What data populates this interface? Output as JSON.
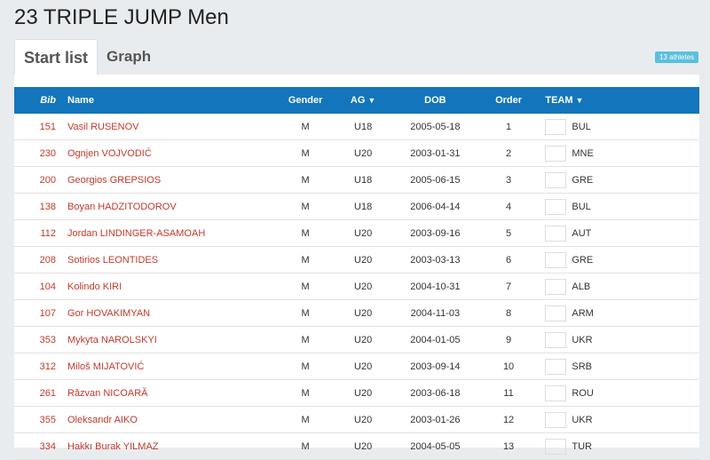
{
  "title": "23 TRIPLE JUMP Men",
  "tabs": [
    {
      "label": "Start list",
      "active": true
    },
    {
      "label": "Graph",
      "active": false
    }
  ],
  "badge": "13 athletes",
  "columns": {
    "bib": "Bib",
    "name": "Name",
    "gender": "Gender",
    "ag": "AG",
    "dob": "DOB",
    "order": "Order",
    "team": "TEAM"
  },
  "icons": {
    "filter": "filter-icon"
  },
  "colors": {
    "header": "#1375bb",
    "link": "#c0392b",
    "badge": "#5bc0de"
  },
  "rows": [
    {
      "bib": "151",
      "name": "Vasil RUSENOV",
      "gender": "M",
      "ag": "U18",
      "dob": "2005-05-18",
      "order": "1",
      "team": "BUL"
    },
    {
      "bib": "230",
      "name": "Ognjen VOJVODIĆ",
      "gender": "M",
      "ag": "U20",
      "dob": "2003-01-31",
      "order": "2",
      "team": "MNE"
    },
    {
      "bib": "200",
      "name": "Georgios GREPSIOS",
      "gender": "M",
      "ag": "U18",
      "dob": "2005-06-15",
      "order": "3",
      "team": "GRE"
    },
    {
      "bib": "138",
      "name": "Boyan HADZITODOROV",
      "gender": "M",
      "ag": "U18",
      "dob": "2006-04-14",
      "order": "4",
      "team": "BUL"
    },
    {
      "bib": "112",
      "name": "Jordan LINDINGER-ASAMOAH",
      "gender": "M",
      "ag": "U20",
      "dob": "2003-09-16",
      "order": "5",
      "team": "AUT"
    },
    {
      "bib": "208",
      "name": "Sotirios LEONTIDES",
      "gender": "M",
      "ag": "U20",
      "dob": "2003-03-13",
      "order": "6",
      "team": "GRE"
    },
    {
      "bib": "104",
      "name": "Kolindo KIRI",
      "gender": "M",
      "ag": "U20",
      "dob": "2004-10-31",
      "order": "7",
      "team": "ALB"
    },
    {
      "bib": "107",
      "name": "Gor HOVAKIMYAN",
      "gender": "M",
      "ag": "U20",
      "dob": "2004-11-03",
      "order": "8",
      "team": "ARM"
    },
    {
      "bib": "353",
      "name": "Mykyta NAROLSKYI",
      "gender": "M",
      "ag": "U20",
      "dob": "2004-01-05",
      "order": "9",
      "team": "UKR"
    },
    {
      "bib": "312",
      "name": "Miloš MIJATOVIĆ",
      "gender": "M",
      "ag": "U20",
      "dob": "2003-09-14",
      "order": "10",
      "team": "SRB"
    },
    {
      "bib": "261",
      "name": "Răzvan NICOARĂ",
      "gender": "M",
      "ag": "U20",
      "dob": "2003-06-18",
      "order": "11",
      "team": "ROU"
    },
    {
      "bib": "355",
      "name": "Oleksandr AIKO",
      "gender": "M",
      "ag": "U20",
      "dob": "2003-01-26",
      "order": "12",
      "team": "UKR"
    },
    {
      "bib": "334",
      "name": "Hakkı Burak YILMAZ",
      "gender": "M",
      "ag": "U20",
      "dob": "2004-05-05",
      "order": "13",
      "team": "TUR"
    }
  ]
}
